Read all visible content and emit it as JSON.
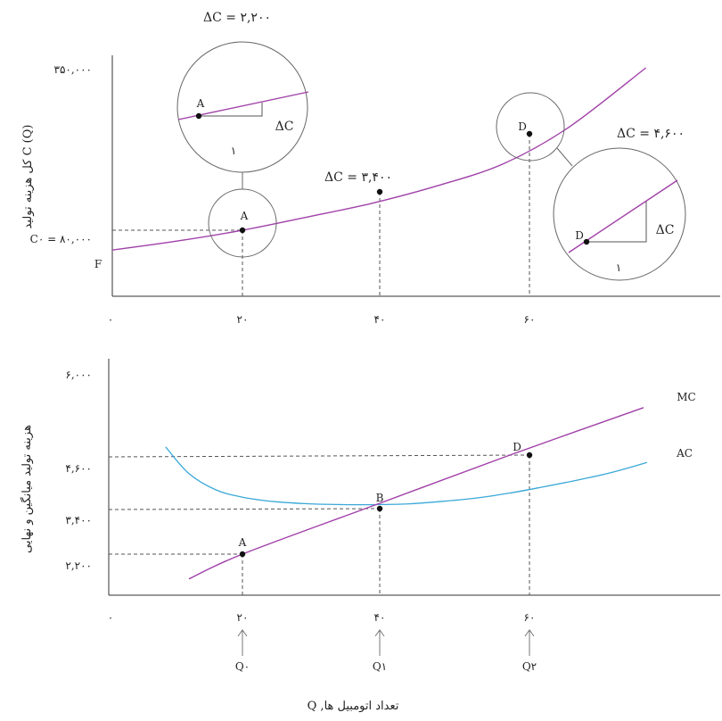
{
  "chart_data": [
    {
      "type": "line",
      "panel": "total-cost",
      "ylabel": "کل هزینه تولید C (Q)",
      "x_ticks": [
        "۰",
        "۲۰",
        "۴۰",
        "۶۰"
      ],
      "x_tick_values": [
        0,
        20,
        40,
        60
      ],
      "y_ticks": [
        "۳۵۰,۰۰۰"
      ],
      "y_tick_values": [
        350000
      ],
      "xlim": [
        0,
        82
      ],
      "ylim": [
        0,
        380000
      ],
      "series": [
        {
          "color": "#a040a8",
          "x": [
            0,
            10,
            20,
            30,
            40,
            50,
            60,
            70,
            82
          ],
          "y": [
            47000,
            62000,
            80000,
            102000,
            125000,
            154000,
            190000,
            250000,
            350000
          ]
        }
      ],
      "points": [
        {
          "label": "A",
          "x": 20,
          "y": 80000
        },
        {
          "label": "",
          "x": 40,
          "y": 125000
        },
        {
          "label": "D",
          "x": 60,
          "y": 190000
        }
      ],
      "annotations": {
        "c0_label": "C۰ = ۸۰,۰۰۰",
        "f_label": "F",
        "dc_A": "ΔC = ۲,۲۰۰",
        "dc_B": "ΔC = ۳,۴۰۰",
        "dc_D": "ΔC = ۴,۶۰۰",
        "zoom_A": {
          "point": "A",
          "run": "۱",
          "rise": "ΔC"
        },
        "zoom_D": {
          "point": "D",
          "run": "۱",
          "rise": "ΔC"
        }
      }
    },
    {
      "type": "line",
      "panel": "average-marginal-cost",
      "ylabel": "هزینه تولید میانگین و نهایی",
      "xlabel": "Q ,تعداد اتومبیل ها",
      "x_ticks": [
        "۰",
        "۲۰",
        "۴۰",
        "۶۰"
      ],
      "x_tick_values": [
        0,
        20,
        40,
        60
      ],
      "y_ticks": [
        "۶,۰۰۰",
        "۴,۶۰۰",
        "۳,۴۰۰",
        "۲,۲۰۰"
      ],
      "y_tick_values": [
        6000,
        4600,
        3400,
        2200
      ],
      "xlim": [
        0,
        82
      ],
      "ylim": [
        1200,
        6200
      ],
      "series": [
        {
          "name": "MC",
          "color": "#a040a8",
          "x": [
            12,
            20,
            40,
            60,
            80
          ],
          "y": [
            1600,
            2200,
            3400,
            4600,
            5750
          ]
        },
        {
          "name": "AC",
          "color": "#3aa8d8",
          "x": [
            8.5,
            12,
            16,
            20,
            25,
            30,
            35,
            40,
            45,
            50,
            55,
            60,
            65,
            70,
            75,
            80.5
          ],
          "y": [
            4800,
            4150,
            3760,
            3580,
            3470,
            3420,
            3400,
            3400,
            3420,
            3480,
            3560,
            3680,
            3830,
            3990,
            4170,
            4420
          ]
        }
      ],
      "points": [
        {
          "label": "A",
          "x": 20,
          "y": 2200
        },
        {
          "label": "B",
          "x": 40,
          "y": 3400
        },
        {
          "label": "D",
          "x": 60,
          "y": 4600
        }
      ],
      "q_markers": [
        "Q۰",
        "Q۱",
        "Q۲"
      ]
    }
  ]
}
